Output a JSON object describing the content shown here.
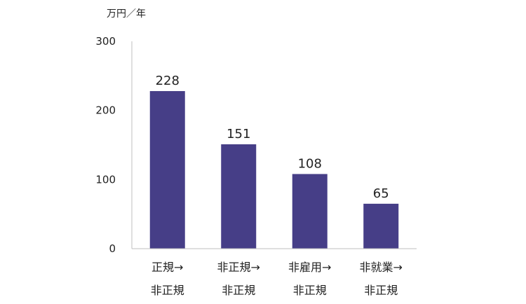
{
  "chart_data": {
    "type": "bar",
    "title": "",
    "xlabel": "",
    "ylabel": "",
    "unit_label": "万円／年",
    "categories": [
      {
        "line1": "正規→",
        "line2": "非正規"
      },
      {
        "line1": "非正規→",
        "line2": "非正規"
      },
      {
        "line1": "非雇用→",
        "line2": "非正規"
      },
      {
        "line1": "非就業→",
        "line2": "非正規"
      }
    ],
    "values": [
      228,
      151,
      108,
      65
    ],
    "value_labels": [
      "228",
      "151",
      "108",
      "65"
    ],
    "ylim": [
      0,
      300
    ],
    "yticks": [
      0,
      100,
      200,
      300
    ],
    "ytick_labels": [
      "0",
      "100",
      "200",
      "300"
    ],
    "grid": false,
    "legend": "none",
    "bar_color": "#463E87",
    "axis_color": "#BFBFBF"
  }
}
